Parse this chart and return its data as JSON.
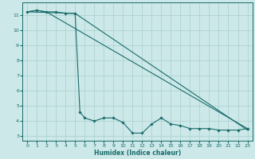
{
  "title": "",
  "xlabel": "Humidex (Indice chaleur)",
  "background_color": "#cce8e8",
  "grid_color": "#aacfcf",
  "line_color": "#1a6b6b",
  "xlim": [
    -0.5,
    23.5
  ],
  "ylim": [
    2.7,
    11.8
  ],
  "yticks": [
    3,
    4,
    5,
    6,
    7,
    8,
    9,
    10,
    11
  ],
  "xticks": [
    0,
    1,
    2,
    3,
    4,
    5,
    6,
    7,
    8,
    9,
    10,
    11,
    12,
    13,
    14,
    15,
    16,
    17,
    18,
    19,
    20,
    21,
    22,
    23
  ],
  "line1_x": [
    0,
    1,
    2,
    3,
    4,
    5,
    5.5,
    6,
    7,
    8,
    9,
    10,
    11,
    12,
    13,
    14,
    15,
    16,
    17,
    18,
    19,
    20,
    21,
    22,
    23
  ],
  "line1_y": [
    11.2,
    11.3,
    11.2,
    11.2,
    11.1,
    11.1,
    4.6,
    4.2,
    4.0,
    4.2,
    4.2,
    3.9,
    3.2,
    3.2,
    3.8,
    4.2,
    3.8,
    3.7,
    3.5,
    3.5,
    3.5,
    3.4,
    3.4,
    3.4,
    3.5
  ],
  "line2_x": [
    0,
    1,
    2,
    23
  ],
  "line2_y": [
    11.2,
    11.3,
    11.2,
    3.5
  ],
  "line3_x": [
    0,
    5,
    23
  ],
  "line3_y": [
    11.2,
    11.1,
    3.4
  ]
}
